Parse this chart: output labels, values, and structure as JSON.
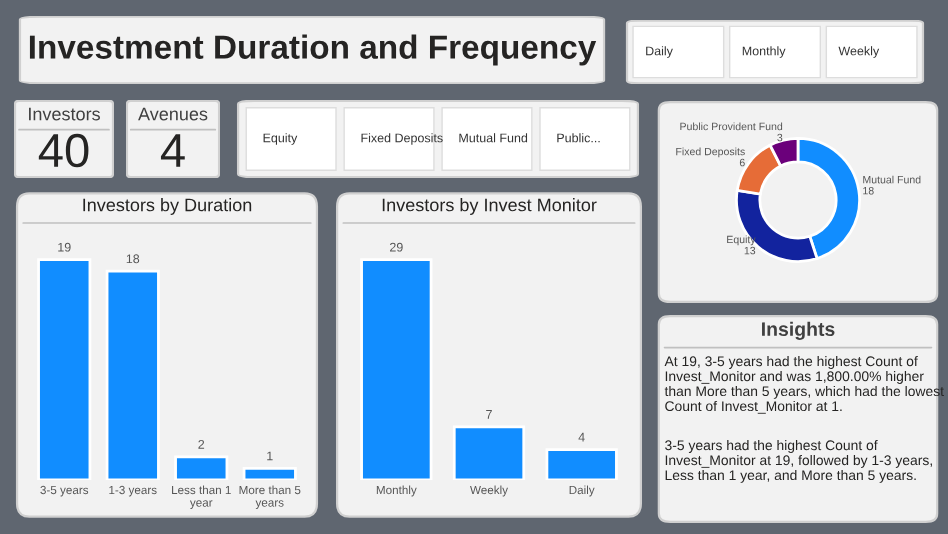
{
  "chart_data": [
    {
      "type": "other",
      "title": "Investment Duration and Frequency"
    },
    {
      "type": "other",
      "annotations": [
        "Daily",
        "Monthly",
        "Weekly"
      ]
    },
    {
      "type": "other",
      "title": "Investors",
      "annotations": [
        "40"
      ]
    },
    {
      "type": "other",
      "title": "Avenues",
      "annotations": [
        "4"
      ]
    },
    {
      "type": "other",
      "annotations": [
        "Equity",
        "Fixed Deposits",
        "Mutual Fund",
        "Public..."
      ]
    },
    {
      "type": "donut",
      "categories": [
        "Mutual Fund",
        "Equity",
        "Fixed Deposits",
        "Public Provident Fund"
      ],
      "values": [
        18,
        13,
        6,
        3
      ],
      "colors": [
        "#118dff",
        "#12239e",
        "#e66c37",
        "#6b007b"
      ],
      "data_labels": true
    },
    {
      "type": "bar",
      "title": "Investors by Duration",
      "categories": [
        "3-5 years",
        "1-3 years",
        "Less than 1\nyear",
        "More than 5\nyears"
      ],
      "values": [
        19,
        18,
        2,
        1
      ],
      "color": "#118dff",
      "data_labels": true
    },
    {
      "type": "bar",
      "title": "Investors by Invest Monitor",
      "categories": [
        "Monthly",
        "Weekly",
        "Daily"
      ],
      "values": [
        29,
        7,
        4
      ],
      "color": "#118dff",
      "data_labels": true
    },
    {
      "type": "other",
      "title": "Insights",
      "annotations": [
        "At 19, 3-5 years had the highest Count of Invest_Monitor and was 1,800.00% higher than More than 5 years, which had the lowest Count of Invest_Monitor at 1.",
        "3-5 years had the highest Count of Invest_Monitor at 19, followed by 1-3 years, Less than 1 year, and More than 5 years."
      ]
    }
  ]
}
